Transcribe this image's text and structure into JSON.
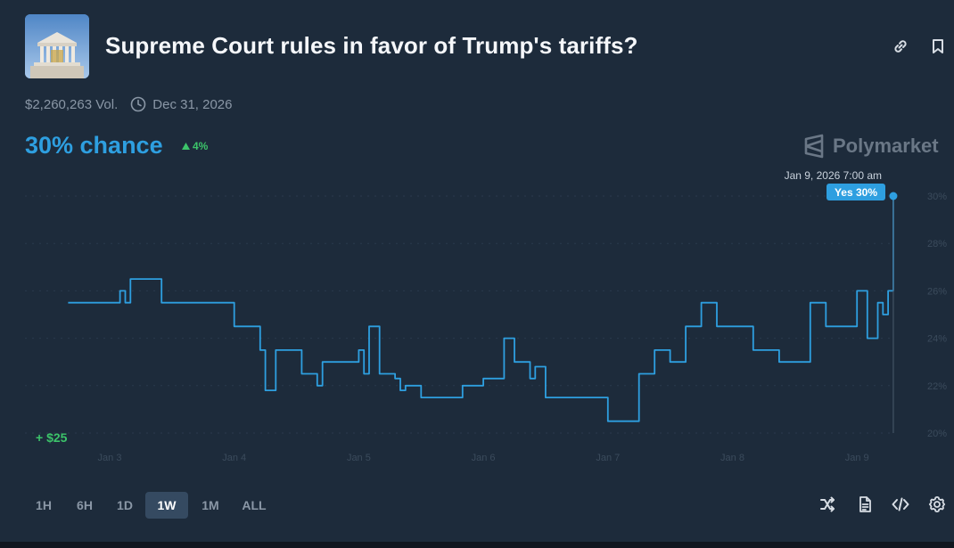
{
  "market": {
    "title": "Supreme Court rules in favor of Trump's tariffs?",
    "volume": "$2,260,263 Vol.",
    "end_date": "Dec 31, 2026",
    "chance": "30% chance",
    "change": "4%",
    "brand": "Polymarket",
    "gain": "+ $25"
  },
  "tooltip": {
    "date": "Jan 9, 2026 7:00 am",
    "label": "Yes 30%"
  },
  "timeframes": [
    {
      "label": "1H",
      "active": false
    },
    {
      "label": "6H",
      "active": false
    },
    {
      "label": "1D",
      "active": false
    },
    {
      "label": "1W",
      "active": true
    },
    {
      "label": "1M",
      "active": false
    },
    {
      "label": "ALL",
      "active": false
    }
  ],
  "icons": {
    "link": "link-icon",
    "bookmark": "bookmark-icon",
    "clock": "clock-icon",
    "shuffle": "shuffle-icon",
    "document": "document-icon",
    "embed": "embed-code-icon",
    "settings": "gear-icon"
  },
  "colors": {
    "background": "#1d2b3b",
    "line": "#2e9fe0",
    "positive": "#3cc46a",
    "muted": "#8a97a6"
  },
  "chart_data": {
    "type": "line",
    "series": [
      {
        "name": "Yes",
        "x": [
          "Jan 2 16:00",
          "Jan 3 00:00",
          "Jan 3 02:00",
          "Jan 3 03:00",
          "Jan 3 04:00",
          "Jan 3 05:00",
          "Jan 3 10:00",
          "Jan 3 22:00",
          "Jan 4 00:00",
          "Jan 4 05:00",
          "Jan 4 06:00",
          "Jan 4 08:00",
          "Jan 4 09:00",
          "Jan 4 12:00",
          "Jan 4 13:00",
          "Jan 4 16:00",
          "Jan 4 17:00",
          "Jan 5 00:00",
          "Jan 5 01:00",
          "Jan 5 02:00",
          "Jan 5 04:00",
          "Jan 5 06:00",
          "Jan 5 07:00",
          "Jan 5 08:00",
          "Jan 5 09:00",
          "Jan 5 12:00",
          "Jan 5 18:00",
          "Jan 5 20:00",
          "Jan 6 00:00",
          "Jan 6 04:00",
          "Jan 6 06:00",
          "Jan 6 09:00",
          "Jan 6 10:00",
          "Jan 6 12:00",
          "Jan 6 15:00",
          "Jan 6 19:00",
          "Jan 7 00:00",
          "Jan 7 04:00",
          "Jan 7 06:00",
          "Jan 7 09:00",
          "Jan 7 12:00",
          "Jan 7 15:00",
          "Jan 7 18:00",
          "Jan 7 21:00",
          "Jan 8 00:00",
          "Jan 8 04:00",
          "Jan 8 06:00",
          "Jan 8 09:00",
          "Jan 8 12:00",
          "Jan 8 15:00",
          "Jan 8 18:00",
          "Jan 8 21:00",
          "Jan 9 00:00",
          "Jan 9 02:00",
          "Jan 9 04:00",
          "Jan 9 05:00",
          "Jan 9 06:00",
          "Jan 9 07:00"
        ],
        "y": [
          25.5,
          25.5,
          26,
          25.5,
          26.5,
          26.5,
          25.5,
          25.5,
          24.5,
          23.5,
          21.8,
          23.5,
          23.5,
          23.5,
          22.5,
          22,
          23,
          23.5,
          22.5,
          24.5,
          22.5,
          22.5,
          22.3,
          21.8,
          22,
          21.5,
          21.5,
          22,
          22.3,
          24,
          23,
          22.3,
          22.8,
          21.5,
          21.5,
          21.5,
          20.5,
          20.5,
          22.5,
          23.5,
          23,
          24.5,
          25.5,
          24.5,
          24.5,
          23.5,
          23.5,
          23,
          23,
          25.5,
          24.5,
          24.5,
          26,
          24,
          25.5,
          25,
          26,
          30
        ]
      }
    ],
    "xticks": [
      "Jan 3",
      "Jan 4",
      "Jan 5",
      "Jan 6",
      "Jan 7",
      "Jan 8",
      "Jan 9"
    ],
    "yticks": [
      "20%",
      "22%",
      "24%",
      "26%",
      "28%",
      "30%"
    ],
    "ylim": [
      20,
      30
    ],
    "grid": true,
    "legend": "none"
  }
}
